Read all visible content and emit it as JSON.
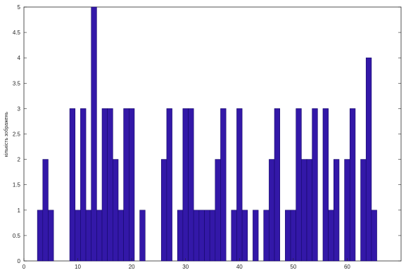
{
  "chart_data": {
    "type": "bar",
    "xlabel": "",
    "ylabel": "кількість зображень",
    "xlim": [
      0,
      70
    ],
    "ylim": [
      0,
      5
    ],
    "x_ticks": [
      0,
      10,
      20,
      30,
      40,
      50,
      60
    ],
    "y_ticks": [
      0,
      0.5,
      1,
      1.5,
      2,
      2.5,
      3,
      3.5,
      4,
      4.5,
      5
    ],
    "bar_color": "#3318a8",
    "edge_color": "#150868",
    "x": [
      3,
      4,
      5,
      6,
      7,
      8,
      9,
      10,
      11,
      12,
      13,
      14,
      15,
      16,
      17,
      18,
      19,
      20,
      21,
      22,
      23,
      24,
      25,
      26,
      27,
      28,
      29,
      30,
      31,
      32,
      33,
      34,
      35,
      36,
      37,
      38,
      39,
      40,
      41,
      42,
      43,
      44,
      45,
      46,
      47,
      48,
      49,
      50,
      51,
      52,
      53,
      54,
      55,
      56,
      57,
      58,
      59,
      60,
      61,
      62,
      63,
      64,
      65
    ],
    "values": [
      1,
      2,
      1,
      0,
      0,
      0,
      3,
      1,
      3,
      1,
      5,
      1,
      3,
      3,
      2,
      1,
      3,
      3,
      0,
      1,
      0,
      0,
      0,
      2,
      3,
      0,
      1,
      3,
      3,
      1,
      1,
      1,
      1,
      2,
      3,
      0,
      1,
      3,
      1,
      0,
      1,
      0,
      1,
      2,
      3,
      0,
      1,
      1,
      3,
      2,
      2,
      3,
      0,
      3,
      1,
      2,
      0,
      2,
      3,
      0,
      2,
      4,
      1
    ],
    "grid": false
  }
}
